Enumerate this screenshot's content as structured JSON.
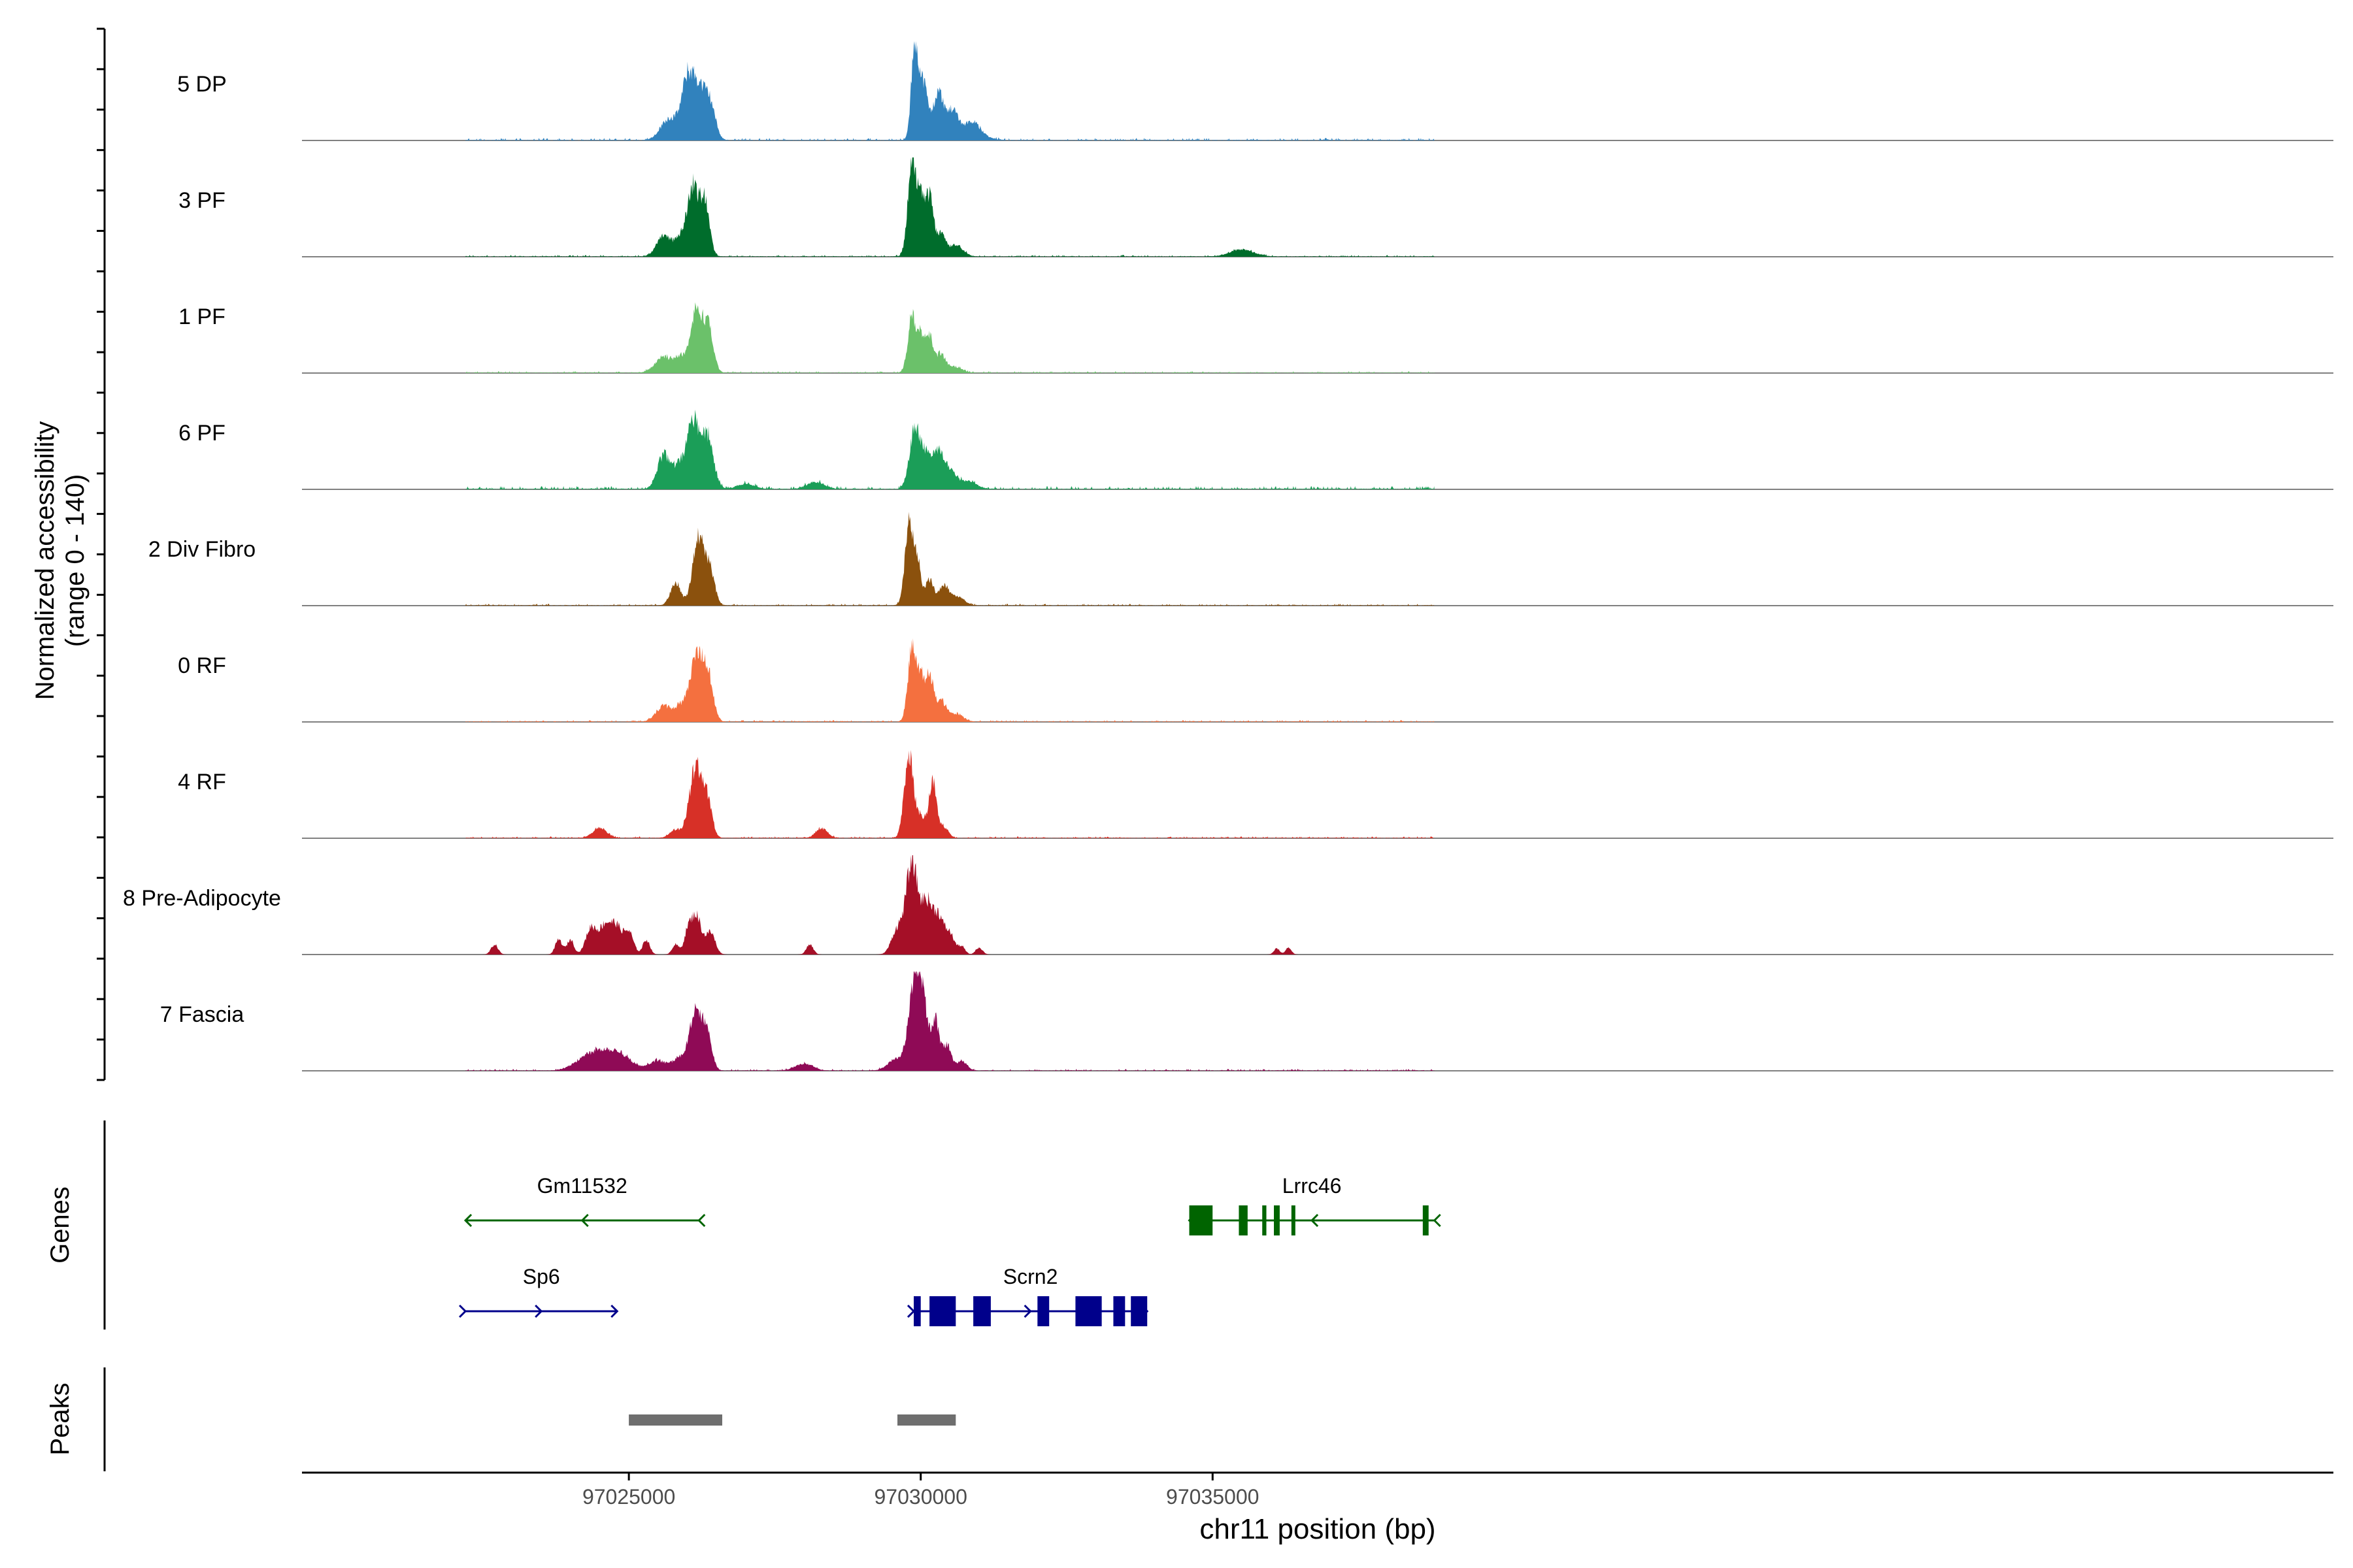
{
  "chart_data": {
    "type": "area",
    "title": "",
    "ylabel": "Normalized accessibility",
    "ylabel_range": "(range 0 - 140)",
    "xlabel": "chr11 position (bp)",
    "xlim": [
      97019400,
      97054200
    ],
    "ylim": [
      0,
      140
    ],
    "x_ticks": [
      {
        "value": 97025000,
        "label": "97025000"
      },
      {
        "value": 97030000,
        "label": "97030000"
      },
      {
        "value": 97035000,
        "label": "97035000"
      }
    ],
    "track_range": [
      97022200,
      97038800
    ],
    "tracks": [
      {
        "name": "5 DP",
        "color": "#3182bd",
        "noise": 4,
        "peaks": [
          [
            97025700,
            0.22,
            150
          ],
          [
            97026000,
            0.52,
            100
          ],
          [
            97026200,
            0.5,
            120
          ],
          [
            97026400,
            0.3,
            90
          ],
          [
            97029900,
            0.96,
            60
          ],
          [
            97030050,
            0.55,
            70
          ],
          [
            97030300,
            0.48,
            90
          ],
          [
            97030550,
            0.3,
            100
          ],
          [
            97030850,
            0.15,
            120
          ],
          [
            97031000,
            0.06,
            150
          ]
        ]
      },
      {
        "name": "3 PF",
        "color": "#006d2c",
        "noise": 3,
        "peaks": [
          [
            97025600,
            0.22,
            120
          ],
          [
            97025900,
            0.2,
            100
          ],
          [
            97026100,
            0.68,
            90
          ],
          [
            97026300,
            0.55,
            80
          ],
          [
            97029850,
            0.95,
            70
          ],
          [
            97030000,
            0.5,
            60
          ],
          [
            97030150,
            0.6,
            70
          ],
          [
            97030350,
            0.22,
            70
          ],
          [
            97030600,
            0.12,
            120
          ],
          [
            97035500,
            0.07,
            200
          ]
        ]
      },
      {
        "name": "1 PF",
        "color": "#6bc16a",
        "noise": 3,
        "peaks": [
          [
            97025600,
            0.16,
            150
          ],
          [
            97025900,
            0.15,
            100
          ],
          [
            97026150,
            0.6,
            90
          ],
          [
            97026350,
            0.48,
            90
          ],
          [
            97029850,
            0.56,
            70
          ],
          [
            97030000,
            0.32,
            60
          ],
          [
            97030150,
            0.35,
            70
          ],
          [
            97030350,
            0.18,
            80
          ],
          [
            97030600,
            0.06,
            110
          ]
        ]
      },
      {
        "name": "6 PF",
        "color": "#1b9e58",
        "noise": 5,
        "peaks": [
          [
            97025600,
            0.34,
            110
          ],
          [
            97025850,
            0.2,
            90
          ],
          [
            97026100,
            0.68,
            110
          ],
          [
            97026350,
            0.5,
            100
          ],
          [
            97029900,
            0.6,
            90
          ],
          [
            97030100,
            0.32,
            80
          ],
          [
            97030300,
            0.35,
            90
          ],
          [
            97030500,
            0.18,
            100
          ],
          [
            97030800,
            0.08,
            150
          ],
          [
            97028200,
            0.07,
            150
          ],
          [
            97027000,
            0.05,
            150
          ]
        ]
      },
      {
        "name": "2 Div Fibro",
        "color": "#8b510d",
        "noise": 3,
        "peaks": [
          [
            97025800,
            0.22,
            90
          ],
          [
            97026200,
            0.7,
            100
          ],
          [
            97026400,
            0.3,
            80
          ],
          [
            97029800,
            0.82,
            70
          ],
          [
            97029950,
            0.4,
            60
          ],
          [
            97030150,
            0.25,
            70
          ],
          [
            97030400,
            0.2,
            90
          ],
          [
            97030650,
            0.08,
            110
          ]
        ]
      },
      {
        "name": "0 RF",
        "color": "#f4703f",
        "noise": 3,
        "peaks": [
          [
            97025600,
            0.16,
            130
          ],
          [
            97025900,
            0.16,
            100
          ],
          [
            97026150,
            0.64,
            100
          ],
          [
            97026350,
            0.48,
            90
          ],
          [
            97029850,
            0.72,
            70
          ],
          [
            97030000,
            0.4,
            60
          ],
          [
            97030150,
            0.45,
            70
          ],
          [
            97030350,
            0.2,
            80
          ],
          [
            97030600,
            0.08,
            120
          ]
        ]
      },
      {
        "name": "4 RF",
        "color": "#d73027",
        "noise": 3,
        "peaks": [
          [
            97024500,
            0.1,
            120
          ],
          [
            97025800,
            0.08,
            100
          ],
          [
            97026150,
            0.72,
            110
          ],
          [
            97026350,
            0.32,
            80
          ],
          [
            97028300,
            0.1,
            100
          ],
          [
            97029800,
            0.84,
            80
          ],
          [
            97030000,
            0.2,
            60
          ],
          [
            97030200,
            0.56,
            70
          ],
          [
            97030400,
            0.1,
            80
          ]
        ]
      },
      {
        "name": "8 Pre-Adipocyte",
        "color": "#a50f27",
        "noise": 0,
        "peaks": [
          [
            97022700,
            0.1,
            60
          ],
          [
            97023800,
            0.15,
            60
          ],
          [
            97024000,
            0.15,
            60
          ],
          [
            97024350,
            0.26,
            90
          ],
          [
            97024600,
            0.3,
            110
          ],
          [
            97024800,
            0.24,
            90
          ],
          [
            97025000,
            0.22,
            80
          ],
          [
            97025300,
            0.15,
            60
          ],
          [
            97025800,
            0.1,
            60
          ],
          [
            97026000,
            0.18,
            60
          ],
          [
            97026150,
            0.4,
            90
          ],
          [
            97026400,
            0.22,
            80
          ],
          [
            97028100,
            0.1,
            60
          ],
          [
            97029600,
            0.25,
            100
          ],
          [
            97029850,
            0.92,
            100
          ],
          [
            97030100,
            0.5,
            90
          ],
          [
            97030300,
            0.38,
            90
          ],
          [
            97030500,
            0.2,
            80
          ],
          [
            97030700,
            0.08,
            60
          ],
          [
            97031000,
            0.07,
            60
          ],
          [
            97036100,
            0.06,
            50
          ],
          [
            97036300,
            0.07,
            50
          ]
        ]
      },
      {
        "name": "7 Fascia",
        "color": "#8f0a56",
        "noise": 3,
        "peaks": [
          [
            97024200,
            0.08,
            200
          ],
          [
            97024500,
            0.16,
            200
          ],
          [
            97024850,
            0.15,
            200
          ],
          [
            97025500,
            0.1,
            150
          ],
          [
            97025850,
            0.12,
            100
          ],
          [
            97026150,
            0.6,
            110
          ],
          [
            97026350,
            0.3,
            80
          ],
          [
            97028000,
            0.07,
            150
          ],
          [
            97029600,
            0.12,
            150
          ],
          [
            97029900,
            0.88,
            100
          ],
          [
            97030050,
            0.5,
            80
          ],
          [
            97030250,
            0.5,
            70
          ],
          [
            97030450,
            0.25,
            70
          ],
          [
            97030700,
            0.1,
            90
          ]
        ]
      }
    ],
    "genes": [
      {
        "name": "Gm11532",
        "strand": "-",
        "color": "#006400",
        "row": 0,
        "start": 97022200,
        "end": 97026200,
        "exons": []
      },
      {
        "name": "Sp6",
        "strand": "+",
        "color": "#00008b",
        "row": 1,
        "start": 97022200,
        "end": 97024800,
        "exons": []
      },
      {
        "name": "Scrn2",
        "strand": "+",
        "color": "#00008b",
        "row": 1,
        "start": 97029880,
        "end": 97033880,
        "exons": [
          [
            97029880,
            97030000
          ],
          [
            97030150,
            97030600
          ],
          [
            97030900,
            97031200
          ],
          [
            97032000,
            97032200
          ],
          [
            97032650,
            97033100
          ],
          [
            97033300,
            97033500
          ],
          [
            97033600,
            97033880
          ]
        ]
      },
      {
        "name": "Lrrc46",
        "strand": "-",
        "color": "#006400",
        "row": 0,
        "start": 97034600,
        "end": 97038800,
        "exons": [
          [
            97034600,
            97035000
          ],
          [
            97035450,
            97035600
          ],
          [
            97035850,
            97035920
          ],
          [
            97036050,
            97036150
          ],
          [
            97036350,
            97036400
          ],
          [
            97038600,
            97038700
          ]
        ]
      }
    ],
    "peaks": [
      {
        "start": 97025000,
        "end": 97026600
      },
      {
        "start": 97029600,
        "end": 97030600
      }
    ],
    "panel_labels": {
      "genes": "Genes",
      "peaks": "Peaks"
    }
  }
}
